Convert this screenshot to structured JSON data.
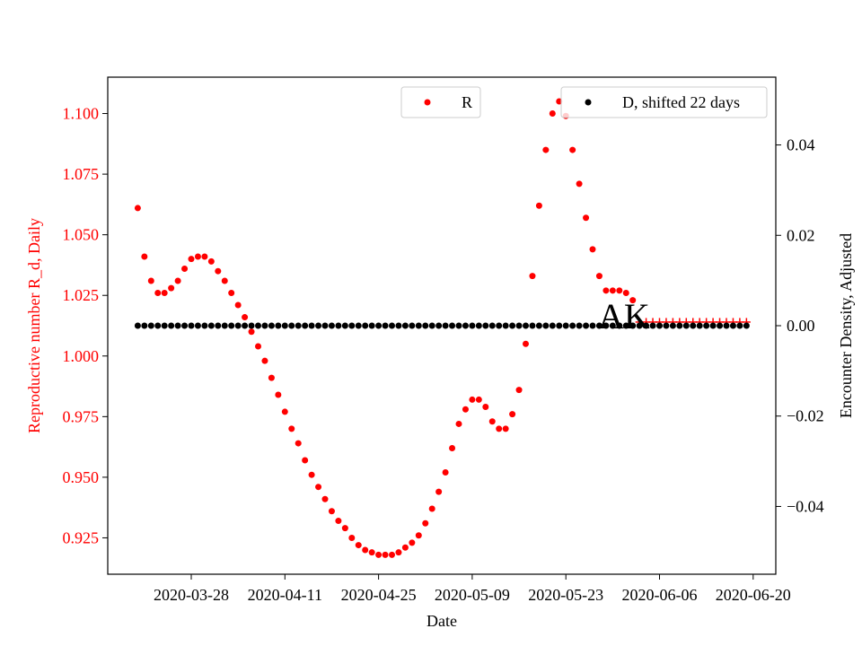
{
  "chart_data": {
    "type": "scatter",
    "xlabel": "Date",
    "ylabel_left": "Reproductive number R_d, Daily",
    "ylabel_right": "Encounter Density, Adjusted",
    "ylim_left": [
      0.91,
      1.115
    ],
    "ylim_right": [
      -0.055,
      0.055
    ],
    "x_ticks": [
      "2020-03-28",
      "2020-04-11",
      "2020-04-25",
      "2020-05-09",
      "2020-05-23",
      "2020-06-06",
      "2020-06-20"
    ],
    "y_ticks_left": [
      "0.925",
      "0.950",
      "0.975",
      "1.000",
      "1.025",
      "1.050",
      "1.075",
      "1.100"
    ],
    "y_ticks_right": [
      "−0.04",
      "−0.02",
      "0.00",
      "0.02",
      "0.04"
    ],
    "annotation": "AK",
    "legend_left": {
      "label": "R",
      "placement": "upper-center"
    },
    "legend_right": {
      "label": "D, shifted 22 days",
      "placement": "upper-right"
    },
    "colors": {
      "r_series": "#ff0000",
      "d_series": "#000000",
      "left_axis": "#ff0000",
      "right_axis": "#000000"
    },
    "series": [
      {
        "name": "R",
        "axis": "left",
        "marker": "dot",
        "x_start": "2020-03-20",
        "values": [
          1.061,
          1.041,
          1.031,
          1.026,
          1.026,
          1.028,
          1.031,
          1.036,
          1.04,
          1.041,
          1.041,
          1.039,
          1.035,
          1.031,
          1.026,
          1.021,
          1.016,
          1.01,
          1.004,
          0.998,
          0.991,
          0.984,
          0.977,
          0.97,
          0.964,
          0.957,
          0.951,
          0.946,
          0.941,
          0.936,
          0.932,
          0.929,
          0.925,
          0.922,
          0.92,
          0.919,
          0.918,
          0.918,
          0.918,
          0.919,
          0.921,
          0.923,
          0.926,
          0.931,
          0.937,
          0.944,
          0.952,
          0.962,
          0.972,
          0.978,
          0.982,
          0.982,
          0.979,
          0.973,
          0.97,
          0.97,
          0.976,
          0.986,
          1.005,
          1.033,
          1.062,
          1.085,
          1.1,
          1.105,
          1.099,
          1.085,
          1.071,
          1.057,
          1.044,
          1.033,
          1.027,
          1.027,
          1.027,
          1.026,
          1.023
        ]
      },
      {
        "name": "R",
        "axis": "left",
        "marker": "plus",
        "x_start": "2020-06-03",
        "values": [
          1.014,
          1.014,
          1.014,
          1.014,
          1.014,
          1.014,
          1.014,
          1.014,
          1.014,
          1.014,
          1.014,
          1.014,
          1.014,
          1.014,
          1.014,
          1.014,
          1.014
        ]
      },
      {
        "name": "D, shifted 22 days",
        "axis": "right",
        "marker": "dot",
        "x_start": "2020-03-20",
        "count": 92,
        "value": 0.0
      }
    ]
  }
}
